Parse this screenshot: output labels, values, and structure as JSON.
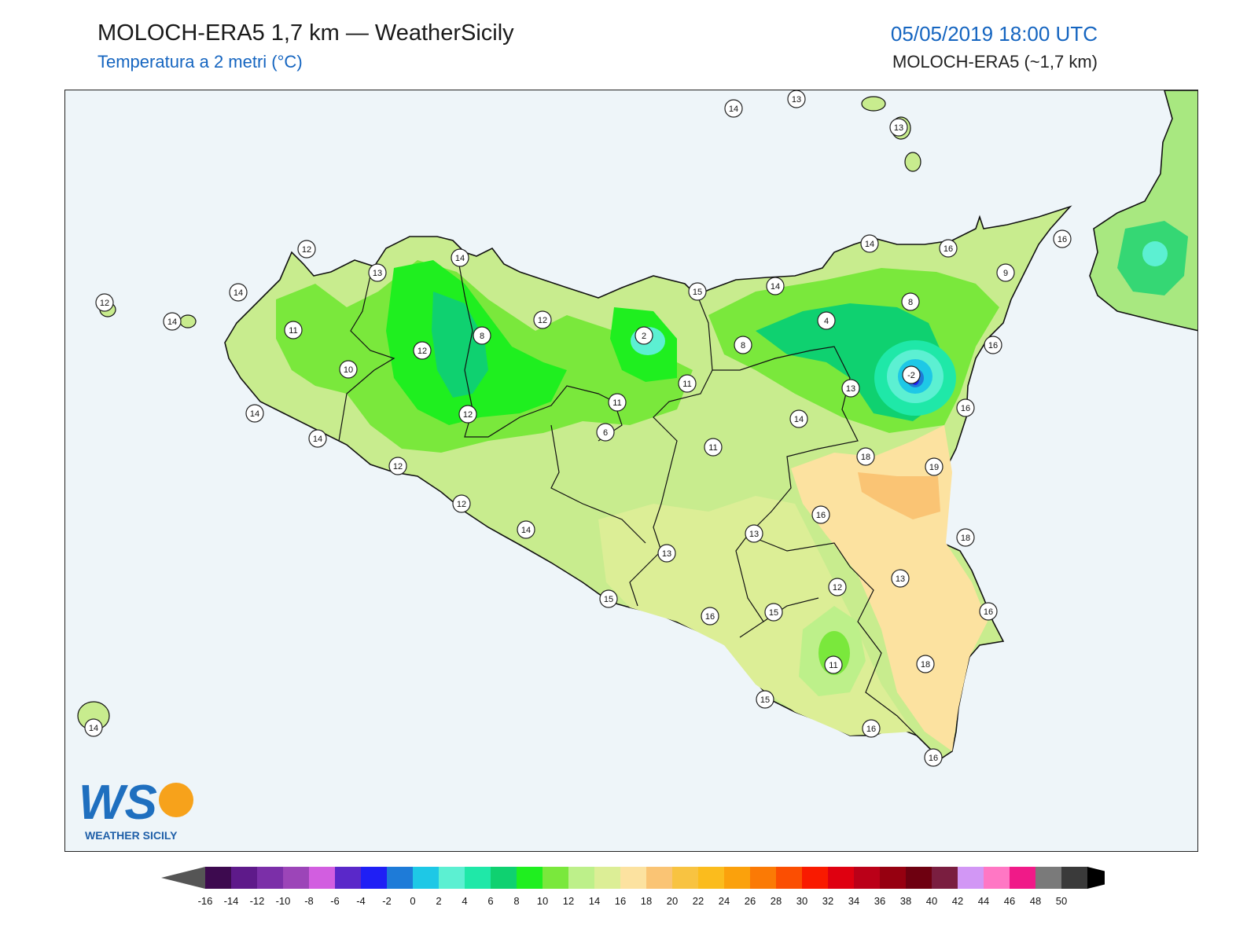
{
  "header": {
    "title": "MOLOCH-ERA5 1,7 km — WeatherSicily",
    "subtitle": "Temperatura a 2 metri (°C)",
    "datetime": "05/05/2019 18:00 UTC",
    "model": "MOLOCH-ERA5 (~1,7 km)"
  },
  "logo": {
    "letters": "WS",
    "text": "WEATHER SICILY"
  },
  "station_labels": [
    "14",
    "13",
    "13",
    "12",
    "13",
    "14",
    "14",
    "12",
    "14",
    "11",
    "12",
    "8",
    "12",
    "2",
    "15",
    "14",
    "8",
    "4",
    "16",
    "16",
    "9",
    "10",
    "12",
    "6",
    "11",
    "11",
    "8",
    "-2",
    "13",
    "16",
    "14",
    "16",
    "14",
    "14",
    "11",
    "18",
    "19",
    "14",
    "12",
    "12",
    "14",
    "13",
    "16",
    "18",
    "13",
    "15",
    "13",
    "12",
    "15",
    "16",
    "16",
    "18",
    "11",
    "15",
    "16",
    "16",
    "14"
  ],
  "colorbar": {
    "ticks": [
      "-16",
      "-14",
      "-12",
      "-10",
      "-8",
      "-6",
      "-4",
      "-2",
      "0",
      "2",
      "4",
      "6",
      "8",
      "10",
      "12",
      "14",
      "16",
      "18",
      "20",
      "22",
      "24",
      "26",
      "28",
      "30",
      "32",
      "34",
      "36",
      "38",
      "40",
      "42",
      "44",
      "46",
      "48",
      "50"
    ],
    "colors": [
      "#3d0a4f",
      "#5e1a8a",
      "#7b2fa8",
      "#9c45b8",
      "#d25ee0",
      "#5a28c9",
      "#1f1ff5",
      "#1e7bd8",
      "#1ec8e6",
      "#5cf0d2",
      "#1fe8a8",
      "#0fd170",
      "#1fef1f",
      "#7ae83c",
      "#bdf08a",
      "#dcee96",
      "#fce2a0",
      "#fac474",
      "#f8c341",
      "#fbbc1d",
      "#fba10c",
      "#fb7a05",
      "#fb4e02",
      "#f91a00",
      "#df0010",
      "#bb0018",
      "#960010",
      "#6e0010",
      "#7a1e40",
      "#d297f5",
      "#ff77c4",
      "#f01a88",
      "#7a7a7a",
      "#3a3a3a"
    ]
  }
}
